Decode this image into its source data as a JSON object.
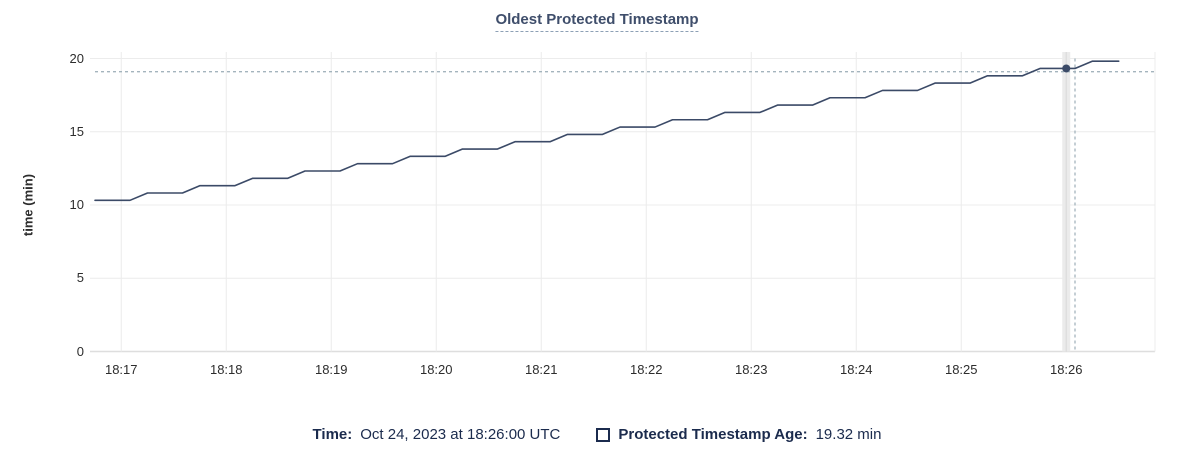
{
  "header": {
    "title": "Oldest Protected Timestamp"
  },
  "chart_data": {
    "type": "line",
    "title": "Oldest Protected Timestamp",
    "xlabel": "",
    "ylabel": "time (min)",
    "x_tick_labels": [
      "18:17",
      "18:18",
      "18:19",
      "18:20",
      "18:21",
      "18:22",
      "18:23",
      "18:24",
      "18:25",
      "18:26"
    ],
    "y_ticks": [
      0,
      5,
      10,
      15,
      20
    ],
    "ylim": [
      0,
      20
    ],
    "grid": true,
    "legend_position": "bottom",
    "series_start_time": "18:16:45",
    "series": [
      {
        "name": "Protected Timestamp Age",
        "unit": "min",
        "points_t_sec_value_min": [
          [
            0,
            10.32
          ],
          [
            20,
            10.32
          ],
          [
            30,
            10.82
          ],
          [
            50,
            10.82
          ],
          [
            60,
            11.32
          ],
          [
            80,
            11.32
          ],
          [
            90,
            11.82
          ],
          [
            110,
            11.82
          ],
          [
            120,
            12.32
          ],
          [
            140,
            12.32
          ],
          [
            150,
            12.82
          ],
          [
            170,
            12.82
          ],
          [
            180,
            13.32
          ],
          [
            200,
            13.32
          ],
          [
            210,
            13.82
          ],
          [
            230,
            13.82
          ],
          [
            240,
            14.32
          ],
          [
            260,
            14.32
          ],
          [
            270,
            14.82
          ],
          [
            290,
            14.82
          ],
          [
            300,
            15.32
          ],
          [
            320,
            15.32
          ],
          [
            330,
            15.82
          ],
          [
            350,
            15.82
          ],
          [
            360,
            16.32
          ],
          [
            380,
            16.32
          ],
          [
            390,
            16.82
          ],
          [
            410,
            16.82
          ],
          [
            420,
            17.32
          ],
          [
            440,
            17.32
          ],
          [
            450,
            17.82
          ],
          [
            470,
            17.82
          ],
          [
            480,
            18.32
          ],
          [
            500,
            18.32
          ],
          [
            510,
            18.82
          ],
          [
            530,
            18.82
          ],
          [
            540,
            19.32
          ],
          [
            560,
            19.32
          ],
          [
            570,
            19.82
          ],
          [
            585,
            19.82
          ]
        ]
      }
    ],
    "highlighted_point": {
      "time": "18:26:00",
      "value_min": 19.32,
      "t_sec": 555
    },
    "crosshair": {
      "t_sec": 560,
      "value_min": 19.1
    }
  },
  "legend": {
    "time_label": "Time:",
    "time_value": "Oct 24, 2023 at 18:26:00 UTC",
    "series_label": "Protected Timestamp Age:",
    "series_value": "19.32 min"
  },
  "colors": {
    "line": "#3b4a67",
    "dot": "#3b4a67",
    "grid": "#ececec",
    "zero_line": "#dedede",
    "crosshair": "#a4b4bd",
    "hover_band": "#ebebeb",
    "title_text": "#3f4e6b",
    "title_underline": "#8da0b5",
    "legend_text": "#1b2b4d",
    "tick_text": "#2d2d2d"
  }
}
